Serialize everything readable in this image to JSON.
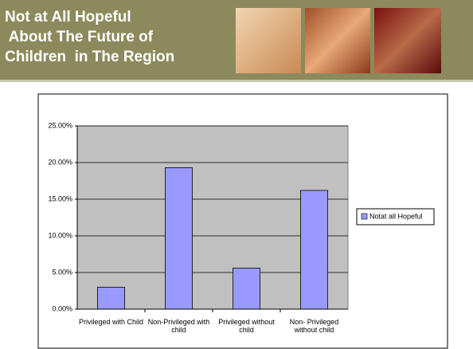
{
  "slide_title": [
    "Not at All Hopeful",
    " About The Future of",
    "Children  in The Region"
  ],
  "chart_data": {
    "type": "bar",
    "categories": [
      "Privileged with Child",
      "Non-Privileged with child",
      "Privileged without child",
      "Non- Privileged without child"
    ],
    "series": [
      {
        "name": "Notat all Hopeful",
        "color": "#9999ff",
        "values": [
          3.0,
          19.3,
          5.6,
          16.2
        ]
      }
    ],
    "ylim": [
      0,
      25
    ],
    "yticks": [
      {
        "value": 0,
        "label": "0.00%"
      },
      {
        "value": 5,
        "label": "5.00%"
      },
      {
        "value": 10,
        "label": "10.00%"
      },
      {
        "value": 15,
        "label": "15.00%"
      },
      {
        "value": 20,
        "label": "20.00%"
      },
      {
        "value": 25,
        "label": "25.00%"
      }
    ],
    "grid": true,
    "legend": "right"
  }
}
